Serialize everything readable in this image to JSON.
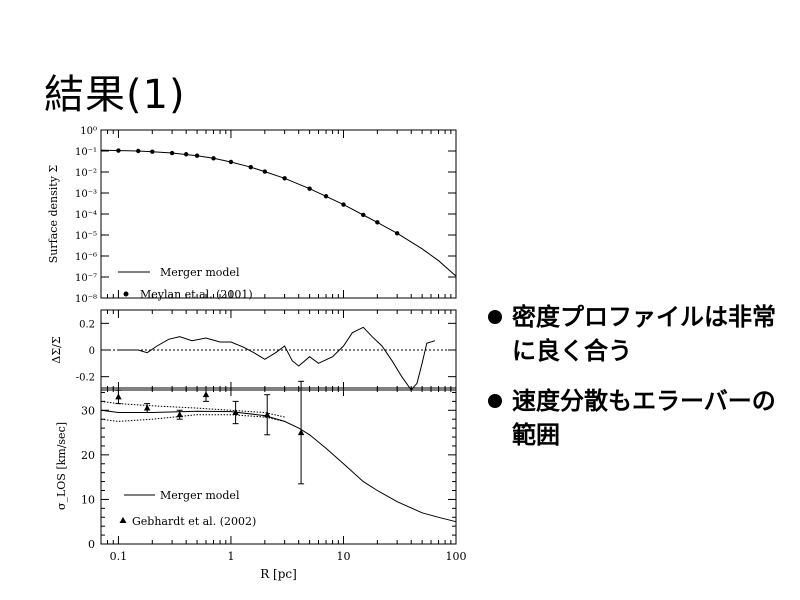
{
  "slide": {
    "title": "結果(1)",
    "bullets": [
      "密度プロファイルは非常に良く合う",
      "速度分散もエラーバーの範囲"
    ]
  },
  "chart_data": [
    {
      "type": "line",
      "panel": "surface-density",
      "ylabel": "Surface density Σ",
      "x_scale": "log",
      "y_scale": "log",
      "xlim": [
        0.07,
        100
      ],
      "ylim": [
        1e-08,
        1
      ],
      "ytick_labels": [
        "10⁰",
        "10⁻¹",
        "10⁻²",
        "10⁻³",
        "10⁻⁴",
        "10⁻⁵",
        "10⁻⁶",
        "10⁻⁷",
        "10⁻⁸"
      ],
      "legend": [
        "Merger model",
        "Meylan et al. (2001)"
      ],
      "series": [
        {
          "name": "Merger model",
          "style": "line",
          "x": [
            0.07,
            0.1,
            0.15,
            0.2,
            0.3,
            0.5,
            0.7,
            1,
            1.5,
            2,
            3,
            5,
            7,
            10,
            15,
            20,
            30,
            50,
            70,
            100
          ],
          "y": [
            0.11,
            0.105,
            0.1,
            0.093,
            0.08,
            0.06,
            0.045,
            0.03,
            0.017,
            0.0105,
            0.005,
            0.0016,
            0.0007,
            0.00028,
            9e-05,
            4e-05,
            1.2e-05,
            2.2e-06,
            6e-07,
            1.1e-07
          ]
        },
        {
          "name": "Meylan et al. (2001)",
          "style": "points",
          "x": [
            0.1,
            0.15,
            0.2,
            0.3,
            0.4,
            0.5,
            0.7,
            1,
            1.5,
            2,
            3,
            5,
            7,
            10,
            15,
            20,
            30
          ],
          "y": [
            0.105,
            0.1,
            0.093,
            0.08,
            0.07,
            0.06,
            0.045,
            0.03,
            0.017,
            0.0105,
            0.005,
            0.0016,
            0.0007,
            0.00028,
            9e-05,
            4e-05,
            1.2e-05
          ]
        }
      ]
    },
    {
      "type": "line",
      "panel": "residual",
      "ylabel": "ΔΣ/Σ",
      "x_scale": "log",
      "xlim": [
        0.07,
        100
      ],
      "ylim": [
        -0.3,
        0.3
      ],
      "ytick_labels": [
        "0.2",
        "0",
        "-0.2"
      ],
      "reference_line": 0,
      "series": [
        {
          "name": "residual",
          "x": [
            0.1,
            0.15,
            0.18,
            0.22,
            0.28,
            0.35,
            0.45,
            0.6,
            0.8,
            1,
            1.3,
            1.6,
            2,
            2.5,
            3,
            3.5,
            4,
            5,
            6,
            8,
            10,
            12,
            15,
            18,
            22,
            27,
            33,
            40,
            45,
            50,
            55,
            65
          ],
          "y": [
            0,
            0,
            -0.02,
            0.03,
            0.08,
            0.1,
            0.07,
            0.09,
            0.06,
            0.06,
            0.02,
            -0.02,
            -0.07,
            -0.02,
            0.03,
            -0.08,
            -0.12,
            -0.05,
            -0.1,
            -0.05,
            0.03,
            0.13,
            0.17,
            0.1,
            0.03,
            -0.08,
            -0.2,
            -0.3,
            -0.25,
            -0.1,
            0.05,
            0.07
          ]
        }
      ]
    },
    {
      "type": "line",
      "panel": "velocity-dispersion",
      "ylabel": "σ_LOS [km/sec]",
      "xlabel": "R [pc]",
      "x_scale": "log",
      "xlim": [
        0.07,
        100
      ],
      "ylim": [
        0,
        35
      ],
      "xtick_labels": [
        "0.1",
        "1",
        "10",
        "100"
      ],
      "ytick_labels": [
        "30",
        "20",
        "10",
        "0"
      ],
      "legend": [
        "Merger model",
        "Gebhardt et al. (2002)"
      ],
      "series": [
        {
          "name": "Merger model",
          "style": "line",
          "x": [
            0.07,
            0.1,
            0.2,
            0.5,
            1,
            2,
            3,
            4,
            5,
            7,
            10,
            15,
            20,
            30,
            50,
            70,
            100
          ],
          "y": [
            30,
            29.5,
            29.5,
            29.8,
            29.7,
            28.8,
            27.5,
            26,
            24.5,
            21.5,
            18,
            14,
            12,
            9.5,
            7,
            6,
            5
          ]
        },
        {
          "name": "model-upper",
          "style": "dotted",
          "x": [
            0.07,
            0.1,
            0.2,
            0.5,
            1,
            2,
            3
          ],
          "y": [
            32,
            31.5,
            31,
            30.5,
            30,
            29.5,
            28.5
          ]
        },
        {
          "name": "model-lower",
          "style": "dotted",
          "x": [
            0.07,
            0.1,
            0.2,
            0.5,
            1,
            2,
            3
          ],
          "y": [
            28,
            27.5,
            28,
            29,
            29,
            28.5,
            27.5
          ]
        },
        {
          "name": "Gebhardt et al. (2002)",
          "style": "points-errorbars",
          "x": [
            0.1,
            0.18,
            0.35,
            0.6,
            1.1,
            2.1,
            4.2
          ],
          "y": [
            33,
            30.5,
            29,
            33.5,
            29.5,
            29,
            25
          ],
          "err": [
            1.5,
            1,
            1,
            1.5,
            2.5,
            4.5,
            11.5
          ]
        }
      ]
    }
  ]
}
